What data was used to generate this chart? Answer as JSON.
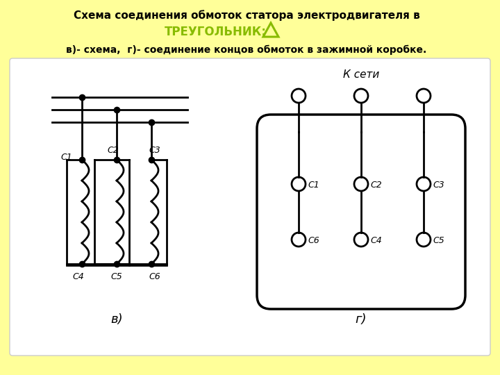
{
  "bg_color": "#FFFF99",
  "white_panel_color": "#FFFFFF",
  "title_line1": "Схема соединения обмоток статора электродвигателя в",
  "title_line2": "ТРЕУГОЛЬНИК:",
  "subtitle": "в)- схема,  г)- соединение концов обмоток в зажимной коробке.",
  "triangle_color": "#88BB00",
  "title_color": "#000000",
  "diagram_color": "#000000",
  "k_seti_text": "К сети"
}
